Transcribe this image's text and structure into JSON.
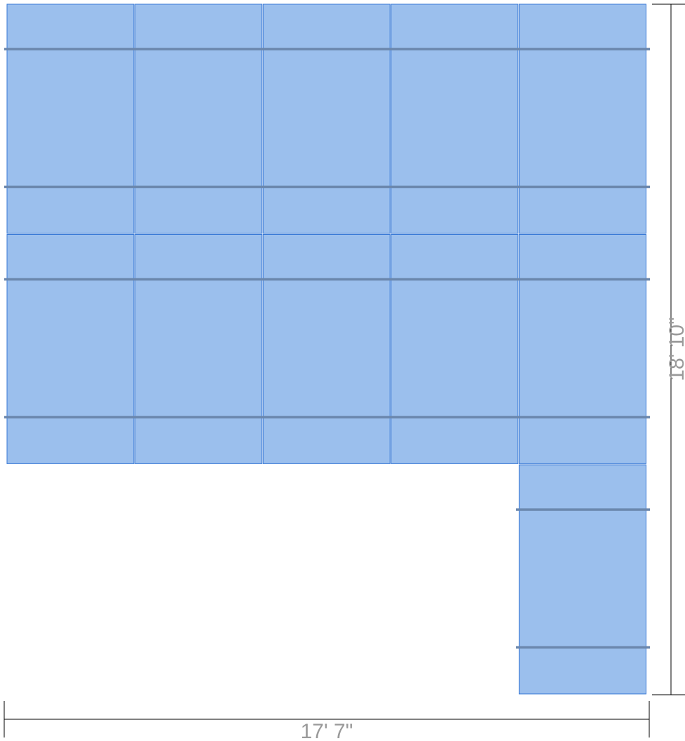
{
  "colors": {
    "panel_fill": "#9bbfed",
    "panel_stroke": "#3a7ad6",
    "rail": "#6b87ad",
    "dimension_line": "#000000",
    "dimension_text": "#9a9a9a"
  },
  "layout_grid": {
    "columns": 5,
    "upper_rows": 2,
    "extra_panels_in_last_column": 1,
    "total_panels": 11
  },
  "dimensions": {
    "width_label": "17' 7\"",
    "height_label": "18' 10\""
  }
}
